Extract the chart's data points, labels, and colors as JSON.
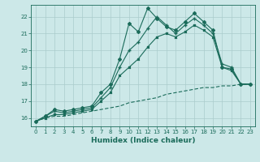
{
  "xlabel": "Humidex (Indice chaleur)",
  "background_color": "#cce8e8",
  "grid_color": "#aacccc",
  "line_color": "#1a6b5a",
  "xlim": [
    -0.5,
    23.5
  ],
  "ylim": [
    15.5,
    22.7
  ],
  "yticks": [
    16,
    17,
    18,
    19,
    20,
    21,
    22
  ],
  "xticks": [
    0,
    1,
    2,
    3,
    4,
    5,
    6,
    7,
    8,
    9,
    10,
    11,
    12,
    13,
    14,
    15,
    16,
    17,
    18,
    19,
    20,
    21,
    22,
    23
  ],
  "line1_y": [
    15.8,
    16.1,
    16.5,
    16.4,
    16.5,
    16.6,
    16.7,
    17.5,
    18.0,
    19.5,
    21.6,
    21.1,
    22.5,
    21.9,
    21.4,
    21.2,
    21.7,
    22.2,
    21.7,
    21.2,
    19.0,
    18.9,
    18.0,
    18.0
  ],
  "line2_y": [
    15.8,
    16.1,
    16.4,
    16.3,
    16.4,
    16.5,
    16.6,
    17.2,
    17.8,
    19.0,
    20.0,
    20.5,
    21.3,
    22.0,
    21.5,
    21.0,
    21.5,
    21.9,
    21.5,
    21.0,
    19.2,
    19.0,
    18.0,
    18.0
  ],
  "line3_y": [
    15.8,
    16.0,
    16.2,
    16.2,
    16.3,
    16.4,
    16.5,
    17.0,
    17.5,
    18.5,
    19.0,
    19.5,
    20.2,
    20.8,
    21.0,
    20.8,
    21.1,
    21.5,
    21.2,
    20.8,
    19.0,
    18.8,
    18.0,
    18.0
  ],
  "line4_y": [
    15.8,
    16.0,
    16.1,
    16.1,
    16.2,
    16.3,
    16.4,
    16.5,
    16.6,
    16.7,
    16.9,
    17.0,
    17.1,
    17.2,
    17.4,
    17.5,
    17.6,
    17.7,
    17.8,
    17.8,
    17.9,
    17.9,
    18.0,
    18.0
  ]
}
